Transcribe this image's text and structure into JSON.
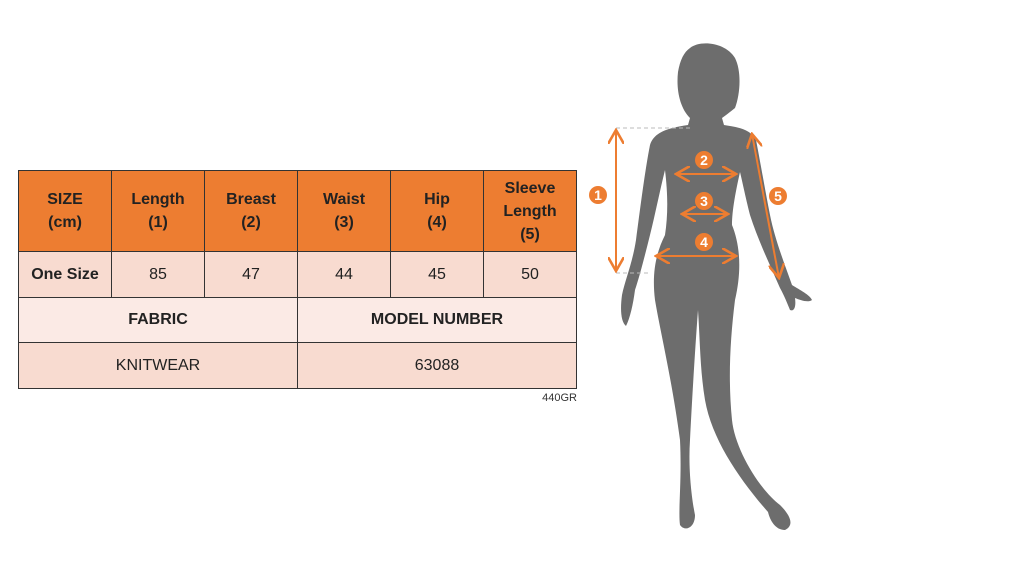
{
  "table": {
    "headers": [
      "SIZE\n(cm)",
      "Length\n(1)",
      "Breast\n(2)",
      "Waist\n(3)",
      "Hip\n(4)",
      "Sleeve\nLength\n(5)"
    ],
    "rows": [
      [
        "One Size",
        "85",
        "47",
        "44",
        "45",
        "50"
      ]
    ],
    "fabric_label": "FABRIC",
    "model_number_label": "MODEL NUMBER",
    "fabric_value": "KNITWEAR",
    "model_number_value": "63088"
  },
  "product_code": "440GR",
  "diagram": {
    "markers": [
      "1",
      "2",
      "3",
      "4",
      "5"
    ],
    "accent_color": "#ed7d31",
    "silhouette_color": "#6d6d6d"
  }
}
